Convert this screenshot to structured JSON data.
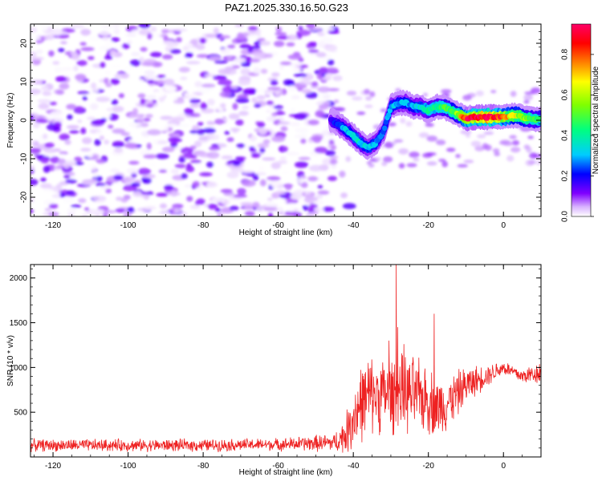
{
  "title": "PAZ1.2025.330.16.50.G23",
  "chart_data": [
    {
      "type": "heatmap",
      "name": "spectrogram",
      "xlabel": "Height of straight line (km)",
      "ylabel": "Frequency (Hz)",
      "xlim": [
        -126,
        10
      ],
      "ylim": [
        -25,
        25
      ],
      "x_ticks": [
        -120,
        -100,
        -80,
        -60,
        -40,
        -20,
        0
      ],
      "y_ticks": [
        -20,
        -10,
        0,
        10,
        20
      ],
      "colorbar": {
        "label": "Normalized spectral amplitude",
        "range": [
          0.0,
          0.95
        ],
        "ticks": [
          0.0,
          0.2,
          0.4,
          0.6,
          0.8
        ],
        "colors": [
          "#ffffff",
          "#8000ff",
          "#0000ff",
          "#00ffff",
          "#00ff00",
          "#ffff00",
          "#ff8000",
          "#ff0000",
          "#ff0066"
        ]
      },
      "ridge": {
        "description_x_km": [
          -46,
          -44,
          -42,
          -40,
          -38,
          -36,
          -34,
          -32,
          -30,
          -28,
          -26,
          -24,
          -22,
          -20,
          -18,
          -16,
          -14,
          -12,
          -10,
          -8,
          -6,
          -4,
          -2,
          0,
          2,
          4,
          6,
          8,
          10
        ],
        "frequency_hz": [
          0,
          -1,
          -2.5,
          -4,
          -6,
          -7,
          -6,
          -3,
          3.5,
          4.5,
          4.5,
          3.5,
          3.5,
          2.5,
          3.5,
          3.5,
          2.5,
          1.5,
          0.5,
          0.8,
          0.8,
          0.8,
          0.8,
          0.8,
          1.2,
          1.2,
          0.5,
          0.3,
          0.2
        ],
        "amplitude": [
          0.15,
          0.25,
          0.3,
          0.35,
          0.35,
          0.3,
          0.3,
          0.25,
          0.3,
          0.3,
          0.3,
          0.3,
          0.35,
          0.4,
          0.4,
          0.45,
          0.5,
          0.55,
          0.85,
          0.9,
          0.9,
          0.95,
          0.85,
          0.8,
          0.65,
          0.6,
          0.55,
          0.45,
          0.45
        ]
      },
      "noise_region_x_km": [
        -126,
        -45
      ],
      "noise_amplitude_range": [
        0.0,
        0.15
      ]
    },
    {
      "type": "line",
      "name": "snr",
      "xlabel": "Height of straight line (km)",
      "ylabel": "SNR (10 * v/v)",
      "xlim": [
        -126,
        10
      ],
      "ylim": [
        0,
        2150
      ],
      "x_ticks": [
        -120,
        -100,
        -80,
        -60,
        -40,
        -20,
        0
      ],
      "y_ticks": [
        500,
        1000,
        1500,
        2000
      ],
      "color": "#ee2222",
      "envelope": {
        "x": [
          -126,
          -120,
          -100,
          -80,
          -60,
          -45,
          -42,
          -40,
          -38,
          -35,
          -30,
          -28,
          -25,
          -20,
          -18,
          -15,
          -10,
          -5,
          0,
          5,
          10
        ],
        "baseline": [
          130,
          130,
          130,
          130,
          140,
          160,
          250,
          450,
          600,
          700,
          700,
          700,
          700,
          650,
          550,
          600,
          800,
          900,
          1000,
          900,
          950
        ],
        "spread": [
          80,
          80,
          80,
          80,
          80,
          120,
          250,
          450,
          500,
          500,
          500,
          500,
          500,
          450,
          400,
          350,
          250,
          150,
          100,
          100,
          150
        ]
      },
      "peaks": [
        {
          "x": -28.6,
          "y": 2150
        },
        {
          "x": -28.2,
          "y": 1450
        },
        {
          "x": -30.5,
          "y": 1300
        },
        {
          "x": -26.5,
          "y": 1260
        },
        {
          "x": -18.5,
          "y": 1600
        },
        {
          "x": -24.0,
          "y": 1050
        },
        {
          "x": -36.0,
          "y": 1050
        }
      ]
    }
  ]
}
